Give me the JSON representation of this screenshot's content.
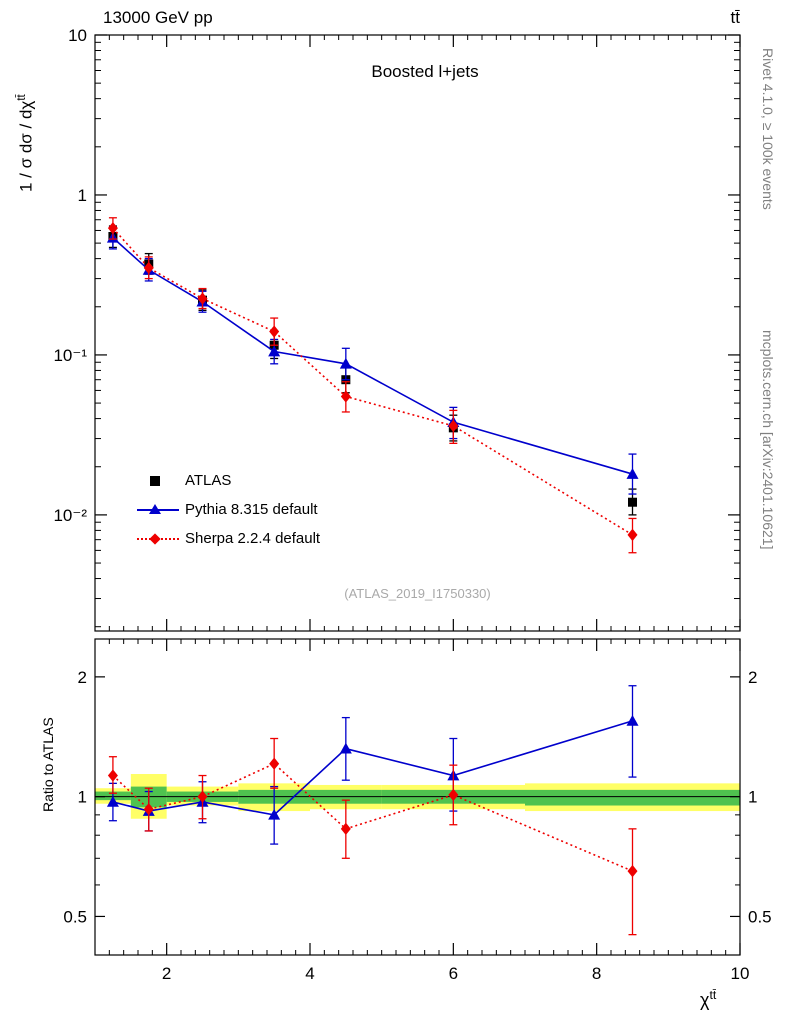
{
  "header": {
    "beam_energy": "13000 GeV pp",
    "process": "tt̄"
  },
  "side_captions": {
    "rivet": "Rivet 4.1.0, ≥ 100k events",
    "mcplots": "mcplots.cern.ch [arXiv:2401.10621]"
  },
  "chart_data": {
    "type": "line",
    "title": "Boosted l+jets",
    "watermark": "(ATLAS_2019_I1750330)",
    "xlabel": {
      "main": "χ",
      "sup": "tt̄"
    },
    "ylabel_top": {
      "main": "1 / σ dσ / dχ",
      "sup": "tt̄"
    },
    "ylabel_bottom": "Ratio to ATLAS",
    "x_axis": {
      "min": 1,
      "max": 10,
      "major_ticks": [
        2,
        4,
        6,
        8,
        10
      ],
      "minor_step": 0.2
    },
    "y_axis_top": {
      "scale": "log",
      "min": 0.00188,
      "max": 10,
      "tick_values": [
        10,
        1,
        0.1,
        0.01
      ],
      "tick_labels": [
        "10",
        "1",
        "10⁻¹",
        "10⁻²"
      ]
    },
    "y_axis_bottom": {
      "scale": "log",
      "min": 0.4,
      "max": 2.49,
      "tick_values": [
        2,
        1,
        0.5
      ],
      "tick_labels": [
        "2",
        "1",
        "0.5"
      ],
      "minor_ticks": [
        0.6,
        0.7,
        0.8,
        0.9
      ]
    },
    "bin_edges": [
      1,
      1.5,
      2,
      3,
      4,
      5,
      7,
      10
    ],
    "x": [
      1.25,
      1.75,
      2.5,
      3.5,
      4.5,
      6,
      8.5
    ],
    "series": [
      {
        "name": "ATLAS",
        "marker": "square",
        "color": "#000000",
        "line": "none",
        "y": [
          0.55,
          0.37,
          0.22,
          0.115,
          0.07,
          0.035,
          0.012
        ],
        "y_err": [
          [
            0.47,
            0.64
          ],
          [
            0.32,
            0.43
          ],
          [
            0.19,
            0.255
          ],
          [
            0.095,
            0.14
          ],
          [
            0.058,
            0.085
          ],
          [
            0.029,
            0.042
          ],
          [
            0.01,
            0.0145
          ]
        ]
      },
      {
        "name": "Pythia 8.315 default",
        "marker": "triangle",
        "color": "#0000cc",
        "line": "solid",
        "y": [
          0.54,
          0.34,
          0.215,
          0.105,
          0.088,
          0.038,
          0.018
        ],
        "y_err": [
          [
            0.46,
            0.63
          ],
          [
            0.29,
            0.4
          ],
          [
            0.185,
            0.25
          ],
          [
            0.088,
            0.125
          ],
          [
            0.07,
            0.11
          ],
          [
            0.03,
            0.047
          ],
          [
            0.0135,
            0.024
          ]
        ],
        "ratio": [
          0.97,
          0.92,
          0.97,
          0.9,
          1.32,
          1.13,
          1.55
        ],
        "ratio_err": [
          [
            0.87,
            1.08
          ],
          [
            0.82,
            1.03
          ],
          [
            0.86,
            1.09
          ],
          [
            0.76,
            1.06
          ],
          [
            1.1,
            1.58
          ],
          [
            0.92,
            1.4
          ],
          [
            1.12,
            1.9
          ]
        ]
      },
      {
        "name": "Sherpa 2.2.4 default",
        "marker": "diamond",
        "color": "#ee0000",
        "line": "dotted",
        "y": [
          0.62,
          0.35,
          0.225,
          0.14,
          0.055,
          0.036,
          0.0075
        ],
        "y_err": [
          [
            0.53,
            0.72
          ],
          [
            0.3,
            0.41
          ],
          [
            0.195,
            0.26
          ],
          [
            0.115,
            0.17
          ],
          [
            0.044,
            0.068
          ],
          [
            0.028,
            0.045
          ],
          [
            0.0058,
            0.0095
          ]
        ],
        "ratio": [
          1.13,
          0.93,
          1.0,
          1.21,
          0.83,
          1.01,
          0.65
        ],
        "ratio_err": [
          [
            1.02,
            1.26
          ],
          [
            0.82,
            1.05
          ],
          [
            0.88,
            1.13
          ],
          [
            1.05,
            1.4
          ],
          [
            0.7,
            0.98
          ],
          [
            0.85,
            1.2
          ],
          [
            0.45,
            0.83
          ]
        ]
      }
    ],
    "bands": {
      "colors": {
        "yellow": "#ffff66",
        "green": "#4fc24f"
      },
      "yellow": [
        [
          0.96,
          1.05
        ],
        [
          0.88,
          1.14
        ],
        [
          0.95,
          1.06
        ],
        [
          0.92,
          1.08
        ],
        [
          0.93,
          1.07
        ],
        [
          0.93,
          1.07
        ],
        [
          0.92,
          1.08
        ]
      ],
      "green": [
        [
          0.98,
          1.03
        ],
        [
          0.94,
          1.06
        ],
        [
          0.97,
          1.03
        ],
        [
          0.96,
          1.04
        ],
        [
          0.96,
          1.04
        ],
        [
          0.96,
          1.04
        ],
        [
          0.95,
          1.04
        ]
      ]
    }
  }
}
